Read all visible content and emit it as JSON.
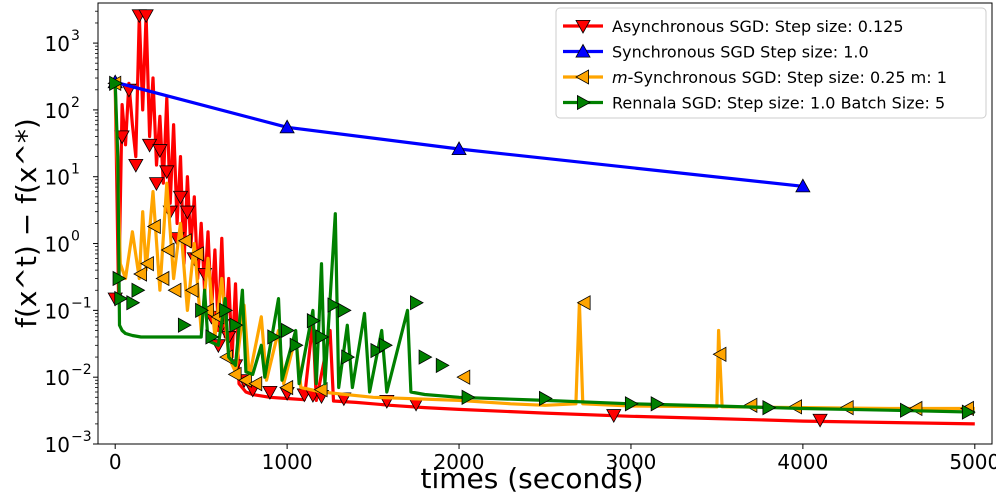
{
  "chart_data": {
    "type": "line",
    "title": "",
    "xlabel": "times (seconds)",
    "ylabel": "f(x^t) − f(x^*)",
    "xlim": [
      -100,
      5100
    ],
    "ylim_log10": [
      -3,
      3.6
    ],
    "yscale": "log",
    "x_ticks": [
      0,
      1000,
      2000,
      3000,
      4000,
      5000
    ],
    "x_tick_labels": [
      "0",
      "1000",
      "2000",
      "3000",
      "4000",
      "5000"
    ],
    "y_ticks_exp": [
      -3,
      -2,
      -1,
      0,
      1,
      2,
      3
    ],
    "y_tick_labels": [
      {
        "base": "10",
        "exp": "−3"
      },
      {
        "base": "10",
        "exp": "−2"
      },
      {
        "base": "10",
        "exp": "−1"
      },
      {
        "base": "10",
        "exp": "0"
      },
      {
        "base": "10",
        "exp": "1"
      },
      {
        "base": "10",
        "exp": "2"
      },
      {
        "base": "10",
        "exp": "3"
      }
    ],
    "legend_position": "top-right",
    "series": [
      {
        "name": "Asynchronous SGD: Step size: 0.125",
        "legend_parts": [
          "",
          "Asynchronous SGD: Step size: 0.125"
        ],
        "color": "#ff0000",
        "marker": "triangle-down",
        "points": [
          [
            0,
            250
          ],
          [
            20,
            0.15
          ],
          [
            40,
            120
          ],
          [
            60,
            30
          ],
          [
            80,
            250
          ],
          [
            100,
            60
          ],
          [
            120,
            20
          ],
          [
            140,
            2600
          ],
          [
            160,
            100
          ],
          [
            180,
            2600
          ],
          [
            200,
            40
          ],
          [
            220,
            300
          ],
          [
            240,
            15
          ],
          [
            260,
            80
          ],
          [
            280,
            8
          ],
          [
            300,
            150
          ],
          [
            320,
            4
          ],
          [
            340,
            60
          ],
          [
            360,
            2
          ],
          [
            380,
            20
          ],
          [
            400,
            0.5
          ],
          [
            420,
            10
          ],
          [
            440,
            0.9
          ],
          [
            460,
            5
          ],
          [
            480,
            0.3
          ],
          [
            500,
            2
          ],
          [
            520,
            0.2
          ],
          [
            540,
            1.5
          ],
          [
            560,
            0.1
          ],
          [
            580,
            0.8
          ],
          [
            600,
            0.05
          ],
          [
            620,
            1.2
          ],
          [
            640,
            0.04
          ],
          [
            660,
            0.3
          ],
          [
            680,
            0.02
          ],
          [
            700,
            0.25
          ],
          [
            720,
            0.008
          ],
          [
            760,
            0.006
          ],
          [
            800,
            0.0055
          ],
          [
            900,
            0.005
          ],
          [
            1000,
            0.0048
          ],
          [
            1100,
            0.0046
          ],
          [
            1150,
            0.07
          ],
          [
            1170,
            0.0045
          ],
          [
            1250,
            0.05
          ],
          [
            1270,
            0.0044
          ],
          [
            1400,
            0.0042
          ],
          [
            1500,
            0.004
          ],
          [
            1600,
            0.0038
          ],
          [
            1800,
            0.0035
          ],
          [
            2000,
            0.0033
          ],
          [
            2500,
            0.0029
          ],
          [
            3000,
            0.0026
          ],
          [
            3500,
            0.0024
          ],
          [
            4000,
            0.0022
          ],
          [
            4500,
            0.0021
          ],
          [
            5000,
            0.002
          ]
        ],
        "markers": [
          [
            0,
            0.15
          ],
          [
            40,
            40
          ],
          [
            80,
            200
          ],
          [
            120,
            15
          ],
          [
            140,
            2600
          ],
          [
            180,
            2600
          ],
          [
            200,
            30
          ],
          [
            240,
            8
          ],
          [
            260,
            25
          ],
          [
            300,
            12
          ],
          [
            320,
            3
          ],
          [
            360,
            1.2
          ],
          [
            380,
            5
          ],
          [
            420,
            3
          ],
          [
            460,
            0.6
          ],
          [
            520,
            0.35
          ],
          [
            560,
            0.08
          ],
          [
            600,
            0.03
          ],
          [
            620,
            0.06
          ],
          [
            660,
            0.04
          ],
          [
            700,
            0.015
          ],
          [
            750,
            0.009
          ],
          [
            800,
            0.0065
          ],
          [
            900,
            0.006
          ],
          [
            1000,
            0.0058
          ],
          [
            1100,
            0.0055
          ],
          [
            1150,
            0.0054
          ],
          [
            1200,
            0.0052
          ],
          [
            1330,
            0.0048
          ],
          [
            1580,
            0.0044
          ],
          [
            1750,
            0.004
          ],
          [
            2900,
            0.0027
          ],
          [
            4100,
            0.0023
          ]
        ]
      },
      {
        "name": "Synchronous SGD Step size: 1.0",
        "legend_parts": [
          "",
          "Synchronous SGD Step size: 1.0"
        ],
        "color": "#0000ff",
        "marker": "triangle-up",
        "points": [
          [
            0,
            260
          ],
          [
            1000,
            55
          ],
          [
            2000,
            26
          ],
          [
            4000,
            7.2
          ]
        ],
        "markers": [
          [
            0,
            260
          ],
          [
            1000,
            55
          ],
          [
            2000,
            26
          ],
          [
            4000,
            7.2
          ]
        ]
      },
      {
        "name": "m-Synchronous SGD: Step size: 0.25 m: 1",
        "legend_parts": [
          "m",
          "-Synchronous  SGD: Step size: 0.25 m: 1"
        ],
        "color": "#ffa500",
        "marker": "triangle-left",
        "points": [
          [
            0,
            250
          ],
          [
            30,
            0.5
          ],
          [
            60,
            0.3
          ],
          [
            100,
            1.5
          ],
          [
            140,
            0.3
          ],
          [
            160,
            3
          ],
          [
            180,
            0.4
          ],
          [
            220,
            6
          ],
          [
            260,
            0.2
          ],
          [
            300,
            8
          ],
          [
            340,
            0.3
          ],
          [
            380,
            2
          ],
          [
            420,
            0.1
          ],
          [
            460,
            1
          ],
          [
            500,
            0.05
          ],
          [
            540,
            0.6
          ],
          [
            580,
            0.04
          ],
          [
            620,
            0.3
          ],
          [
            660,
            0.02
          ],
          [
            700,
            0.012
          ],
          [
            750,
            0.12
          ],
          [
            780,
            0.01
          ],
          [
            850,
            0.08
          ],
          [
            880,
            0.009
          ],
          [
            950,
            0.05
          ],
          [
            980,
            0.008
          ],
          [
            1050,
            0.04
          ],
          [
            1080,
            0.007
          ],
          [
            1200,
            0.006
          ],
          [
            1500,
            0.005
          ],
          [
            2000,
            0.0045
          ],
          [
            2300,
            0.004
          ],
          [
            2500,
            0.0038
          ],
          [
            2680,
            0.004
          ],
          [
            2700,
            0.13
          ],
          [
            2720,
            0.004
          ],
          [
            3000,
            0.0037
          ],
          [
            3500,
            0.0036
          ],
          [
            3510,
            0.05
          ],
          [
            3530,
            0.0036
          ],
          [
            4000,
            0.0035
          ],
          [
            4500,
            0.0034
          ],
          [
            5000,
            0.0034
          ]
        ],
        "markers": [
          [
            0,
            250
          ],
          [
            150,
            0.35
          ],
          [
            190,
            0.5
          ],
          [
            230,
            1.8
          ],
          [
            280,
            0.3
          ],
          [
            310,
            0.8
          ],
          [
            350,
            0.2
          ],
          [
            410,
            1.1
          ],
          [
            450,
            0.2
          ],
          [
            480,
            0.7
          ],
          [
            540,
            0.1
          ],
          [
            600,
            0.08
          ],
          [
            650,
            0.02
          ],
          [
            700,
            0.011
          ],
          [
            760,
            0.009
          ],
          [
            820,
            0.008
          ],
          [
            1000,
            0.007
          ],
          [
            1200,
            0.0065
          ],
          [
            2030,
            0.01
          ],
          [
            2730,
            0.13
          ],
          [
            3520,
            0.022
          ],
          [
            3700,
            0.0038
          ],
          [
            3960,
            0.0036
          ],
          [
            4260,
            0.0035
          ],
          [
            4660,
            0.0034
          ],
          [
            4960,
            0.0034
          ]
        ]
      },
      {
        "name": "Rennala SGD: Step size: 1.0 Batch Size: 5",
        "legend_parts": [
          "",
          "Rennala SGD: Step size: 1.0 Batch Size: 5"
        ],
        "color": "#008000",
        "marker": "triangle-right",
        "points": [
          [
            0,
            250
          ],
          [
            15,
            20
          ],
          [
            25,
            0.06
          ],
          [
            40,
            0.05
          ],
          [
            60,
            0.045
          ],
          [
            100,
            0.042
          ],
          [
            150,
            0.04
          ],
          [
            200,
            0.04
          ],
          [
            300,
            0.04
          ],
          [
            400,
            0.04
          ],
          [
            500,
            0.04
          ],
          [
            520,
            0.2
          ],
          [
            540,
            0.035
          ],
          [
            600,
            0.03
          ],
          [
            640,
            0.15
          ],
          [
            660,
            0.02
          ],
          [
            700,
            0.015
          ],
          [
            740,
            0.2
          ],
          [
            760,
            0.012
          ],
          [
            800,
            0.011
          ],
          [
            850,
            0.03
          ],
          [
            870,
            0.01
          ],
          [
            950,
            0.15
          ],
          [
            970,
            0.009
          ],
          [
            1050,
            0.05
          ],
          [
            1070,
            0.008
          ],
          [
            1150,
            0.1
          ],
          [
            1170,
            0.008
          ],
          [
            1200,
            0.5
          ],
          [
            1220,
            0.008
          ],
          [
            1280,
            2.8
          ],
          [
            1300,
            0.007
          ],
          [
            1350,
            0.06
          ],
          [
            1380,
            0.007
          ],
          [
            1450,
            0.09
          ],
          [
            1480,
            0.006
          ],
          [
            1550,
            0.05
          ],
          [
            1580,
            0.006
          ],
          [
            1700,
            0.1
          ],
          [
            1720,
            0.006
          ],
          [
            1800,
            0.0055
          ],
          [
            2000,
            0.005
          ],
          [
            2500,
            0.0045
          ],
          [
            3000,
            0.004
          ],
          [
            3500,
            0.0037
          ],
          [
            4000,
            0.0034
          ],
          [
            4500,
            0.0032
          ],
          [
            5000,
            0.003
          ]
        ],
        "markers": [
          [
            0,
            250
          ],
          [
            20,
            0.3
          ],
          [
            30,
            0.15
          ],
          [
            100,
            0.13
          ],
          [
            130,
            0.2
          ],
          [
            400,
            0.06
          ],
          [
            500,
            0.1
          ],
          [
            560,
            0.04
          ],
          [
            640,
            0.1
          ],
          [
            700,
            0.06
          ],
          [
            920,
            0.04
          ],
          [
            1000,
            0.05
          ],
          [
            1050,
            0.03
          ],
          [
            1150,
            0.07
          ],
          [
            1200,
            0.04
          ],
          [
            1270,
            0.12
          ],
          [
            1330,
            0.1
          ],
          [
            1350,
            0.02
          ],
          [
            1520,
            0.025
          ],
          [
            1570,
            0.03
          ],
          [
            1750,
            0.13
          ],
          [
            1800,
            0.02
          ],
          [
            1900,
            0.015
          ],
          [
            2050,
            0.005
          ],
          [
            2500,
            0.0048
          ],
          [
            3000,
            0.004
          ],
          [
            3150,
            0.004
          ],
          [
            3800,
            0.0035
          ],
          [
            4600,
            0.0032
          ],
          [
            4960,
            0.003
          ]
        ]
      }
    ]
  }
}
